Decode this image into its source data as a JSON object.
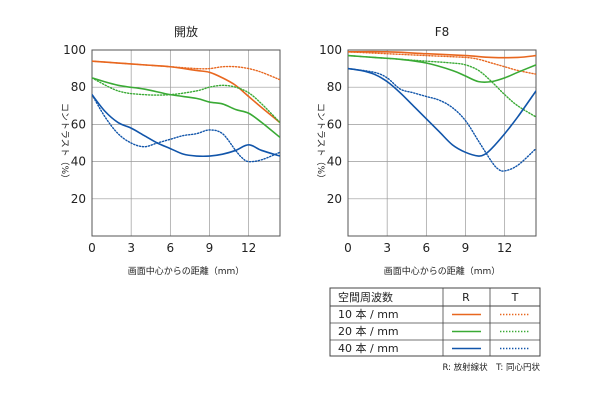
{
  "chart_data": [
    {
      "type": "line",
      "title": "開放",
      "xlabel": "画面中心からの距離（mm）",
      "ylabel": "コントラスト（%）",
      "xlim": [
        0,
        14.4
      ],
      "ylim": [
        0,
        100
      ],
      "xticks": [
        "0",
        "3",
        "6",
        "9",
        "12"
      ],
      "yticks": [
        "20",
        "40",
        "60",
        "80",
        "100"
      ],
      "grid": true,
      "series": [
        {
          "name": "10本/mm R",
          "color": "#e8671f",
          "style": "solid",
          "x": [
            0,
            2,
            4,
            6,
            8,
            9,
            10,
            11,
            12,
            13,
            14.4
          ],
          "y": [
            94,
            93,
            92,
            91,
            89,
            88,
            85,
            81,
            75,
            69,
            61
          ]
        },
        {
          "name": "10本/mm T",
          "color": "#e8671f",
          "style": "dotted",
          "x": [
            0,
            2,
            4,
            6,
            8,
            9,
            10,
            11,
            12,
            13,
            14.4
          ],
          "y": [
            94,
            93,
            92,
            91,
            90,
            90,
            91,
            91,
            90,
            88,
            84
          ]
        },
        {
          "name": "20本/mm R",
          "color": "#3aaa35",
          "style": "solid",
          "x": [
            0,
            2,
            4,
            6,
            8,
            9,
            10,
            11,
            12,
            13,
            14.4
          ],
          "y": [
            85,
            81,
            79,
            76,
            74,
            72,
            71,
            68,
            66,
            61,
            53
          ]
        },
        {
          "name": "20本/mm T",
          "color": "#3aaa35",
          "style": "dotted",
          "x": [
            0,
            2,
            4,
            6,
            8,
            9,
            10,
            11,
            12,
            13,
            14.4
          ],
          "y": [
            85,
            78,
            76,
            76,
            78,
            80,
            81,
            80,
            77,
            71,
            61
          ]
        },
        {
          "name": "40本/mm R",
          "color": "#1155aa",
          "style": "solid",
          "x": [
            0,
            1,
            2,
            3,
            4,
            5,
            6,
            7,
            8,
            9,
            10,
            11,
            12,
            13,
            14.4
          ],
          "y": [
            76,
            67,
            61,
            58,
            54,
            50,
            47,
            44,
            43,
            43,
            44,
            46,
            49,
            46,
            43
          ]
        },
        {
          "name": "40本/mm T",
          "color": "#1155aa",
          "style": "dotted",
          "x": [
            0,
            1,
            2,
            3,
            4,
            5,
            6,
            7,
            8,
            9,
            10,
            11,
            11.5,
            12,
            13,
            14.4
          ],
          "y": [
            76,
            64,
            55,
            50,
            48,
            50,
            52,
            54,
            55,
            57,
            55,
            46,
            42,
            40,
            41,
            45
          ]
        }
      ]
    },
    {
      "type": "line",
      "title": "F8",
      "xlabel": "画面中心からの距離（mm）",
      "ylabel": "コントラスト（%）",
      "xlim": [
        0,
        14.4
      ],
      "ylim": [
        0,
        100
      ],
      "xticks": [
        "0",
        "3",
        "6",
        "9",
        "12"
      ],
      "yticks": [
        "20",
        "40",
        "60",
        "80",
        "100"
      ],
      "grid": true,
      "series": [
        {
          "name": "10本/mm R",
          "color": "#e8671f",
          "style": "solid",
          "x": [
            0,
            3,
            6,
            9,
            11,
            13,
            14.4
          ],
          "y": [
            99,
            99,
            98,
            97,
            96,
            96,
            97
          ]
        },
        {
          "name": "10本/mm T",
          "color": "#e8671f",
          "style": "dotted",
          "x": [
            0,
            3,
            6,
            9,
            10,
            11,
            12,
            13,
            14.4
          ],
          "y": [
            99,
            98,
            97,
            96,
            95,
            93,
            91,
            89,
            87
          ]
        },
        {
          "name": "20本/mm R",
          "color": "#3aaa35",
          "style": "solid",
          "x": [
            0,
            2,
            4,
            6,
            8,
            9,
            10,
            11,
            12,
            13,
            14.4
          ],
          "y": [
            97,
            96,
            95,
            93,
            89,
            86,
            83,
            83,
            85,
            88,
            92
          ]
        },
        {
          "name": "20本/mm T",
          "color": "#3aaa35",
          "style": "dotted",
          "x": [
            0,
            2,
            4,
            6,
            8,
            9,
            10,
            11,
            12,
            13,
            14.4
          ],
          "y": [
            97,
            96,
            95,
            94,
            93,
            92,
            89,
            83,
            76,
            70,
            64
          ]
        },
        {
          "name": "40本/mm R",
          "color": "#1155aa",
          "style": "solid",
          "x": [
            0,
            1,
            2,
            3,
            4,
            5,
            6,
            7,
            8,
            9,
            10,
            10.5,
            11,
            12,
            13,
            14.4
          ],
          "y": [
            90,
            89,
            87,
            83,
            77,
            70,
            63,
            56,
            49,
            45,
            43,
            44,
            47,
            55,
            64,
            78
          ]
        },
        {
          "name": "40本/mm T",
          "color": "#1155aa",
          "style": "dotted",
          "x": [
            0,
            2,
            3,
            4,
            5,
            6,
            7,
            8,
            9,
            10,
            11,
            11.5,
            12,
            13,
            14.4
          ],
          "y": [
            90,
            88,
            85,
            79,
            77,
            75,
            73,
            69,
            62,
            51,
            40,
            36,
            35,
            38,
            47
          ]
        }
      ]
    }
  ],
  "legend": {
    "header": "空間周波数",
    "col_r": "R",
    "col_t": "T",
    "rows": [
      {
        "label": "10 本 / mm",
        "color": "#e8671f"
      },
      {
        "label": "20 本 / mm",
        "color": "#3aaa35"
      },
      {
        "label": "40 本 / mm",
        "color": "#1155aa"
      }
    ]
  },
  "note": "R: 放射線状　T: 同心円状"
}
